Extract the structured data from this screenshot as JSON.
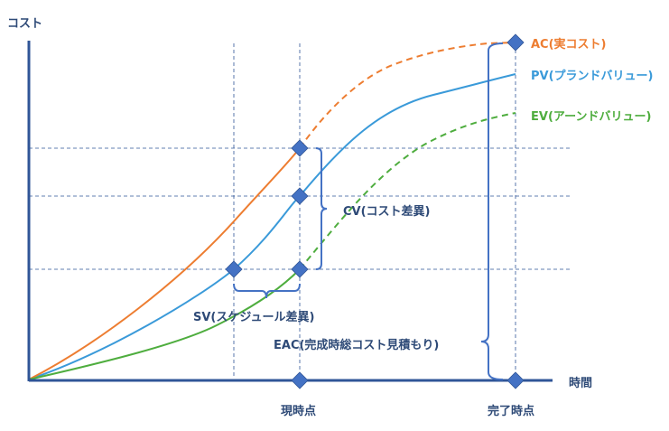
{
  "axes": {
    "y_label": "コスト",
    "x_label": "時間"
  },
  "markers": {
    "now": "現時点",
    "completion": "完了時点"
  },
  "curves": {
    "ac": {
      "label": "AC(実コスト)",
      "color": "#ED7D31"
    },
    "pv": {
      "label": "PV(プランドバリュー)",
      "color": "#3A9AD9"
    },
    "ev": {
      "label": "EV(アーンドバリュー)",
      "color": "#4EAD3E"
    }
  },
  "annotations": {
    "cv": "CV(コスト差異)",
    "sv": "SV(スケジュール差異)",
    "eac": "EAC(完成時総コスト見積もり)"
  },
  "colors": {
    "axis": "#2F5597",
    "grid": "#2F5597",
    "diamond": "#4472C4",
    "text": "#2E4A77"
  }
}
